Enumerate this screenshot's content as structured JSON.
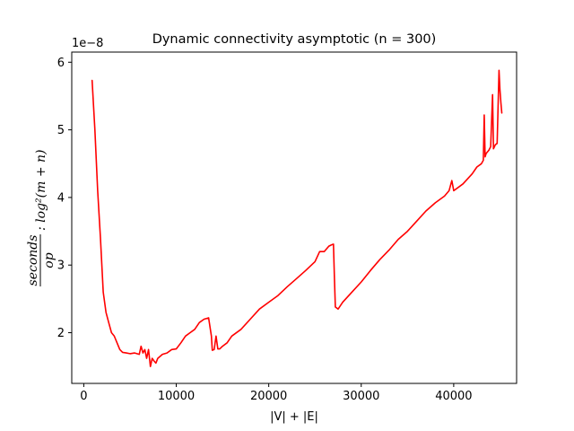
{
  "chart_data": {
    "type": "line",
    "title": "Dynamic connectivity asymptotic (n = 300)",
    "xlabel": "|V| + |E|",
    "ylabel_numerator": "seconds",
    "ylabel_denominator": "op",
    "ylabel_suffix": ": log²(m + n)",
    "offset_text": "1e−8",
    "xlim": [
      -1300,
      46800
    ],
    "ylim": [
      1.25,
      6.15
    ],
    "xticks": [
      0,
      10000,
      20000,
      30000,
      40000
    ],
    "xtick_labels": [
      "0",
      "10000",
      "20000",
      "30000",
      "40000"
    ],
    "yticks": [
      2,
      3,
      4,
      5,
      6
    ],
    "ytick_labels": [
      "2",
      "3",
      "4",
      "5",
      "6"
    ],
    "grid": false,
    "series": [
      {
        "color": "#ff0000",
        "x": [
          900,
          1200,
          1500,
          1800,
          2100,
          2400,
          2700,
          3000,
          3300,
          3600,
          3900,
          4200,
          4600,
          5000,
          5500,
          6000,
          6200,
          6400,
          6600,
          6800,
          7000,
          7200,
          7400,
          7600,
          7800,
          8000,
          8500,
          9000,
          9500,
          10000,
          10500,
          11000,
          11500,
          12000,
          12500,
          13000,
          13500,
          13800,
          13900,
          14100,
          14300,
          14500,
          14700,
          15000,
          15500,
          16000,
          17000,
          18000,
          19000,
          20000,
          21000,
          22000,
          23000,
          24000,
          25000,
          25500,
          26000,
          26500,
          26800,
          27000,
          27100,
          27200,
          27500,
          28000,
          29000,
          30000,
          31000,
          32000,
          33000,
          34000,
          35000,
          36000,
          37000,
          38000,
          39000,
          39500,
          39800,
          40000,
          41000,
          42000,
          42500,
          43000,
          43200,
          43300,
          43400,
          43500,
          43800,
          44000,
          44200,
          44300,
          44400,
          44500,
          44700,
          44900,
          45000,
          45100,
          45200
        ],
        "y": [
          5.73,
          5.0,
          4.1,
          3.4,
          2.6,
          2.3,
          2.15,
          2.0,
          1.95,
          1.85,
          1.75,
          1.71,
          1.7,
          1.69,
          1.7,
          1.68,
          1.8,
          1.7,
          1.75,
          1.62,
          1.75,
          1.5,
          1.62,
          1.58,
          1.55,
          1.62,
          1.68,
          1.7,
          1.75,
          1.76,
          1.85,
          1.95,
          2.0,
          2.05,
          2.15,
          2.2,
          2.22,
          1.95,
          1.74,
          1.75,
          1.95,
          1.76,
          1.76,
          1.8,
          1.85,
          1.95,
          2.05,
          2.2,
          2.35,
          2.45,
          2.55,
          2.68,
          2.8,
          2.92,
          3.05,
          3.2,
          3.2,
          3.28,
          3.3,
          3.31,
          2.8,
          2.38,
          2.35,
          2.45,
          2.6,
          2.75,
          2.92,
          3.08,
          3.22,
          3.38,
          3.5,
          3.65,
          3.8,
          3.92,
          4.02,
          4.1,
          4.25,
          4.1,
          4.2,
          4.35,
          4.45,
          4.5,
          4.55,
          5.22,
          4.6,
          4.65,
          4.7,
          4.75,
          5.52,
          4.72,
          4.75,
          4.78,
          4.8,
          5.88,
          5.6,
          5.4,
          5.25
        ]
      }
    ]
  }
}
